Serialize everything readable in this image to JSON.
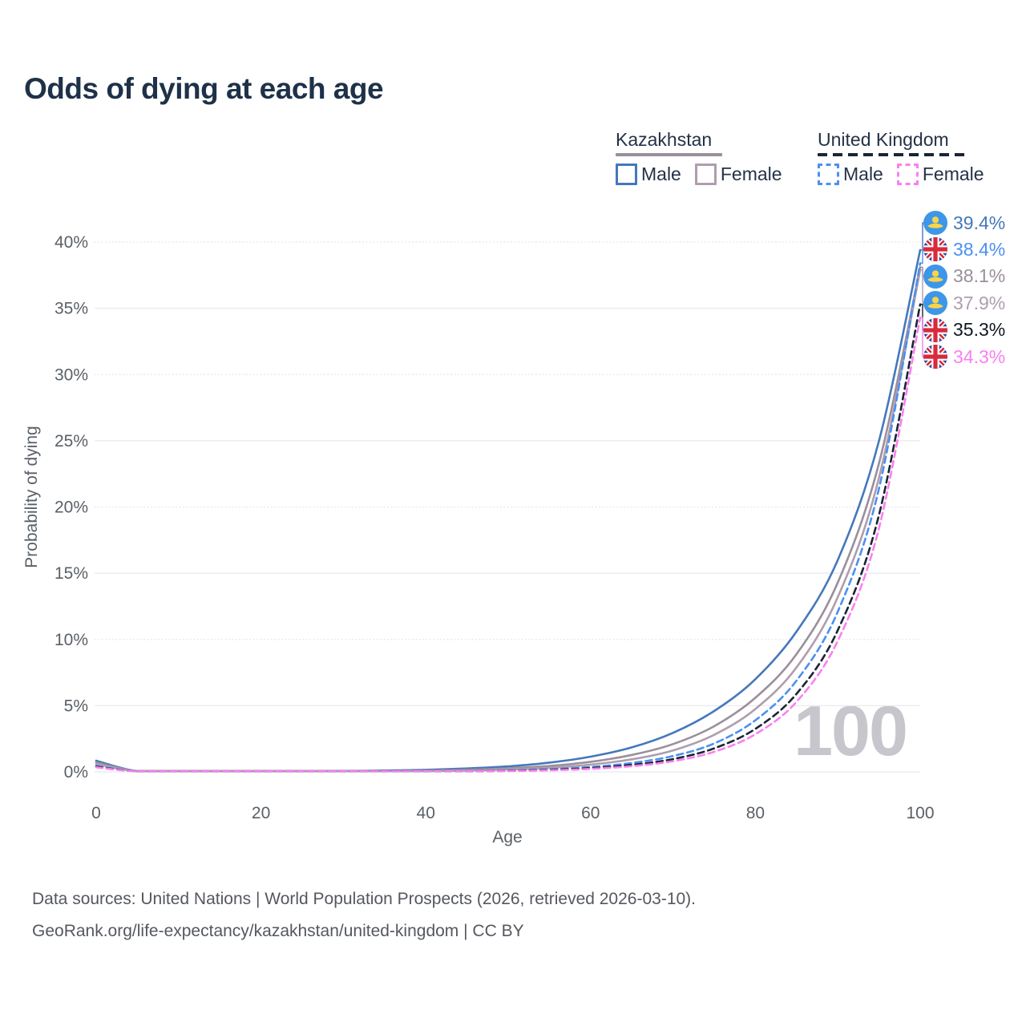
{
  "title": {
    "text": "Odds of dying at each age"
  },
  "legend": {
    "kazakhstan": {
      "title": "Kazakhstan",
      "male_label": "Male",
      "female_label": "Female"
    },
    "united_kingdom": {
      "title": "United Kingdom",
      "male_label": "Male",
      "female_label": "Female"
    }
  },
  "watermark": {
    "text": "100"
  },
  "footer": {
    "line1": "Data sources: United Nations | World Population Prospects (2026, retrieved 2026-03-10).",
    "line2": "GeoRank.org/life-expectancy/kazakhstan/united-kingdom | CC BY"
  },
  "chart_data": {
    "type": "line",
    "title": "Odds of dying at each age",
    "xlabel": "Age",
    "ylabel": "Probability of dying",
    "xlim": [
      0,
      100
    ],
    "ylim": [
      0,
      40
    ],
    "x_ticks": [
      0,
      20,
      40,
      60,
      80,
      100
    ],
    "y_ticks": [
      0,
      5,
      10,
      15,
      20,
      25,
      30,
      35,
      40
    ],
    "y_tick_suffix": "%",
    "grid": "horizontal-only",
    "legend_position": "top-right",
    "hovered_age": 100,
    "ages": [
      0,
      5,
      10,
      15,
      20,
      25,
      30,
      35,
      40,
      45,
      50,
      55,
      60,
      65,
      70,
      75,
      80,
      85,
      90,
      95,
      100
    ],
    "series": [
      {
        "id": "kz-male",
        "country": "kz",
        "country_name": "Kazakhstan",
        "sex": "Male",
        "style": "solid",
        "color": "#4478bc",
        "label_color": "#4478bc",
        "end_value": 39.4,
        "end_label": "39.4%",
        "values": [
          0.85,
          0.01,
          0.01,
          0.02,
          0.03,
          0.04,
          0.07,
          0.1,
          0.16,
          0.26,
          0.42,
          0.7,
          1.15,
          1.85,
          2.95,
          4.6,
          7.0,
          10.6,
          16.0,
          25.0,
          39.4
        ]
      },
      {
        "id": "kz-both",
        "country": "kz",
        "country_name": "Kazakhstan",
        "sex": "Both sexes",
        "style": "solid",
        "color": "#9b8f9b",
        "label_color": "#9b8f9b",
        "end_value": 38.1,
        "end_label": "38.1%",
        "values": [
          0.72,
          0.007,
          0.007,
          0.01,
          0.015,
          0.022,
          0.036,
          0.06,
          0.1,
          0.16,
          0.27,
          0.45,
          0.76,
          1.28,
          2.1,
          3.45,
          5.6,
          8.9,
          14.3,
          23.3,
          38.1
        ]
      },
      {
        "id": "kz-female",
        "country": "kz",
        "country_name": "Kazakhstan",
        "sex": "Female",
        "style": "solid",
        "color": "#af9daf",
        "label_color": "#af9daf",
        "end_value": 37.9,
        "end_label": "37.9%",
        "values": [
          0.6,
          0.005,
          0.005,
          0.007,
          0.009,
          0.014,
          0.022,
          0.038,
          0.063,
          0.105,
          0.18,
          0.31,
          0.55,
          0.95,
          1.62,
          2.8,
          4.75,
          7.9,
          13.2,
          22.2,
          37.9
        ]
      },
      {
        "id": "uk-male",
        "country": "uk",
        "country_name": "United Kingdom",
        "sex": "Male",
        "style": "dashed",
        "color": "#4b90f0",
        "label_color": "#4b90f0",
        "end_value": 38.4,
        "end_label": "38.4%",
        "values": [
          0.45,
          0.003,
          0.003,
          0.004,
          0.006,
          0.009,
          0.013,
          0.02,
          0.035,
          0.062,
          0.11,
          0.2,
          0.37,
          0.67,
          1.2,
          2.15,
          3.9,
          6.9,
          12.1,
          21.4,
          38.4
        ]
      },
      {
        "id": "uk-both",
        "country": "uk",
        "country_name": "United Kingdom",
        "sex": "Both sexes",
        "style": "dashed",
        "color": "#1b2533",
        "label_color": "#0f1822",
        "end_value": 35.3,
        "end_label": "35.3%",
        "values": [
          0.4,
          0.002,
          0.002,
          0.003,
          0.005,
          0.007,
          0.01,
          0.015,
          0.026,
          0.047,
          0.085,
          0.155,
          0.29,
          0.53,
          0.97,
          1.78,
          3.25,
          5.9,
          10.7,
          19.4,
          35.3
        ]
      },
      {
        "id": "uk-female",
        "country": "uk",
        "country_name": "United Kingdom",
        "sex": "Female",
        "style": "dashed",
        "color": "#f980ef",
        "label_color": "#f980ef",
        "end_value": 34.3,
        "end_label": "34.3%",
        "values": [
          0.35,
          0.002,
          0.002,
          0.002,
          0.003,
          0.005,
          0.007,
          0.011,
          0.019,
          0.035,
          0.065,
          0.12,
          0.23,
          0.43,
          0.81,
          1.52,
          2.85,
          5.3,
          9.9,
          18.4,
          34.3
        ]
      }
    ],
    "end_label_order": [
      "kz-male",
      "uk-male",
      "kz-both",
      "kz-female",
      "uk-both",
      "uk-female"
    ]
  }
}
